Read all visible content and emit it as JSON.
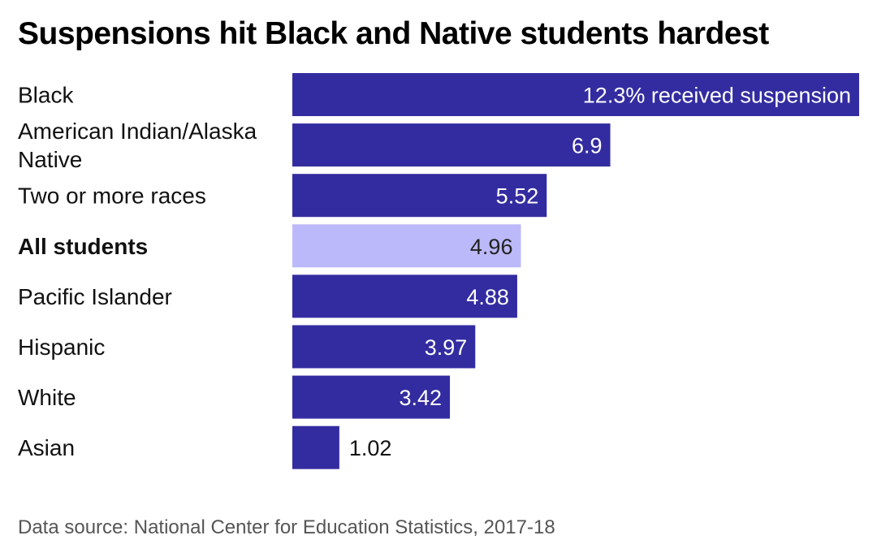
{
  "chart_data": {
    "type": "bar",
    "orientation": "horizontal",
    "title": "Suspensions hit Black and Native students hardest",
    "categories": [
      [
        "Black"
      ],
      [
        "American Indian/Alaska",
        "Native"
      ],
      [
        "Two or more races"
      ],
      [
        "All students"
      ],
      [
        "Pacific Islander"
      ],
      [
        "Hispanic"
      ],
      [
        "White"
      ],
      [
        "Asian"
      ]
    ],
    "values": [
      12.3,
      6.9,
      5.52,
      4.96,
      4.88,
      3.97,
      3.42,
      1.02
    ],
    "value_labels": [
      "12.3% received suspension",
      "6.9",
      "5.52",
      "4.96",
      "4.88",
      "3.97",
      "3.42",
      "1.02"
    ],
    "highlight_category": "All students",
    "colors": {
      "bar": "#332ca0",
      "highlight_bar": "#bcb9fa"
    },
    "xlim": [
      0,
      12.3
    ],
    "grid": false,
    "legend": "none"
  },
  "source": "Data source: National Center for Education Statistics, 2017-18"
}
